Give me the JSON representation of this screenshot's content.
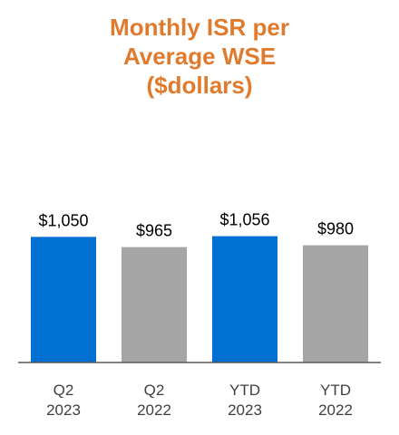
{
  "chart_data": {
    "type": "bar",
    "title_lines": [
      "Monthly ISR per",
      "Average WSE",
      "($dollars)"
    ],
    "categories": [
      [
        "Q2",
        "2023"
      ],
      [
        "Q2",
        "2022"
      ],
      [
        "YTD",
        "2023"
      ],
      [
        "YTD",
        "2022"
      ]
    ],
    "values": [
      1050,
      965,
      1056,
      980
    ],
    "data_labels": [
      "$1,050",
      "$965",
      "$1,056",
      "$980"
    ],
    "bar_colors": [
      "#0070d2",
      "#a6a6a6",
      "#0070d2",
      "#a6a6a6"
    ],
    "title_color": "#e07b2e",
    "ylim": [
      0,
      1250
    ],
    "grid": false,
    "legend": "none"
  }
}
